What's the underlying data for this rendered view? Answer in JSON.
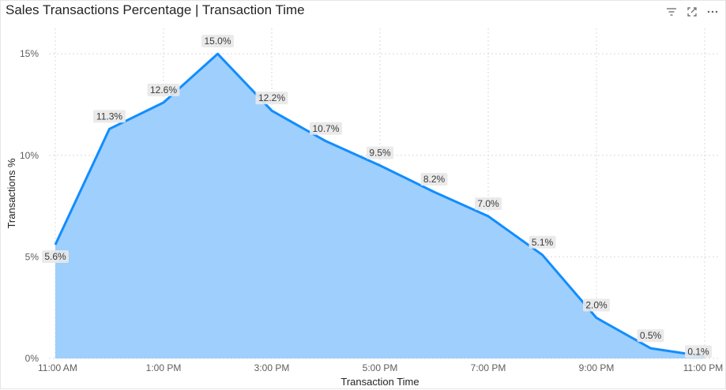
{
  "title": "Sales Transactions Percentage | Transaction Time",
  "icons": [
    "filter-icon",
    "focus-mode-icon",
    "more-options-icon"
  ],
  "colors": {
    "area_fill": "#9fcffc",
    "line": "#118dff",
    "label_bg": "#e8e8e8",
    "grid": "#d9d9d9"
  },
  "chart_data": {
    "type": "area",
    "title": "Sales Transactions Percentage | Transaction Time",
    "xlabel": "Transaction Time",
    "ylabel": "Transactions %",
    "x": [
      "11:00 AM",
      "12:00 PM",
      "1:00 PM",
      "2:00 PM",
      "3:00 PM",
      "4:00 PM",
      "5:00 PM",
      "6:00 PM",
      "7:00 PM",
      "8:00 PM",
      "9:00 PM",
      "10:00 PM",
      "11:00 PM"
    ],
    "x_tick_labels": [
      "11:00 AM",
      "1:00 PM",
      "3:00 PM",
      "5:00 PM",
      "7:00 PM",
      "9:00 PM",
      "11:00 PM"
    ],
    "values": [
      5.6,
      11.3,
      12.6,
      15.0,
      12.2,
      10.7,
      9.5,
      8.2,
      7.0,
      5.1,
      2.0,
      0.5,
      0.1
    ],
    "data_labels": [
      "5.6%",
      "11.3%",
      "12.6%",
      "15.0%",
      "12.2%",
      "10.7%",
      "9.5%",
      "8.2%",
      "7.0%",
      "5.1%",
      "2.0%",
      "0.5%",
      "0.1%"
    ],
    "y_ticks": [
      0,
      5,
      10,
      15
    ],
    "y_tick_labels": [
      "0%",
      "5%",
      "10%",
      "15%"
    ],
    "ylim": [
      0,
      15
    ],
    "grid": true,
    "legend": "none"
  }
}
